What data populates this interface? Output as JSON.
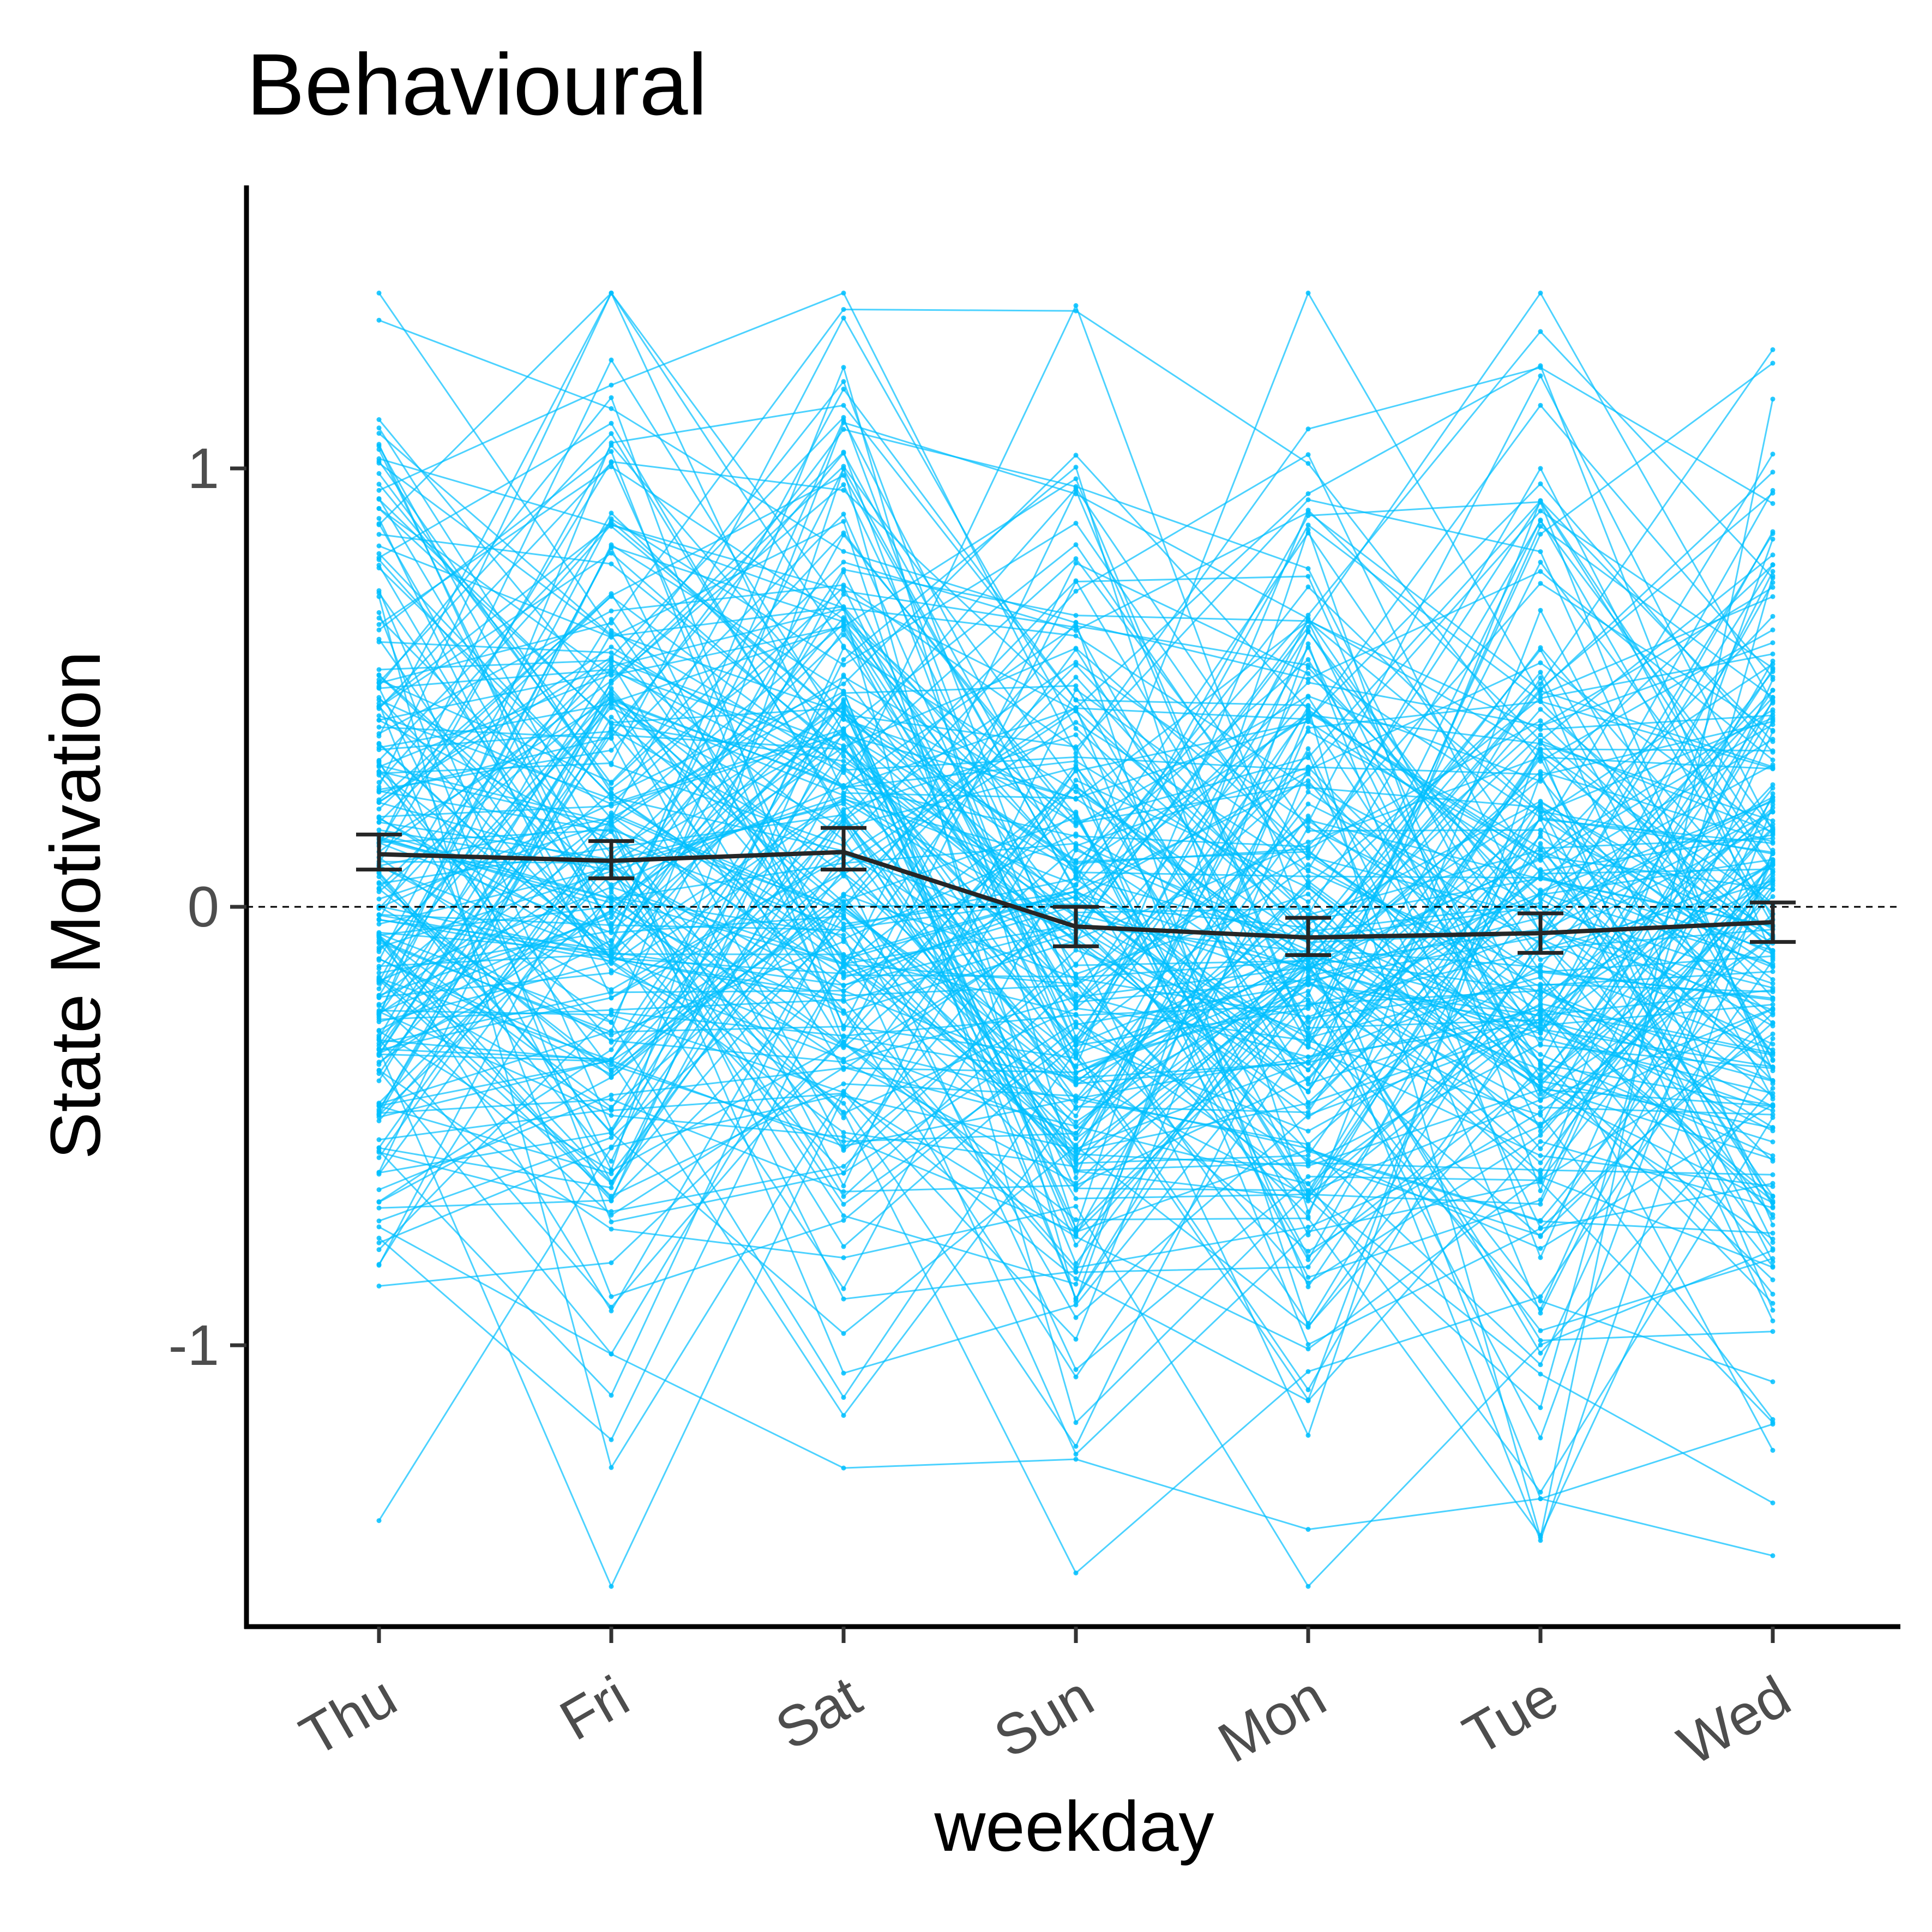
{
  "chart_data": {
    "type": "line",
    "title": "Behavioural",
    "xlabel": "weekday",
    "ylabel": "State Motivation",
    "categories": [
      "Thu",
      "Fri",
      "Sat",
      "Sun",
      "Mon",
      "Tue",
      "Wed"
    ],
    "yticks": [
      {
        "value": 1,
        "label": "1"
      },
      {
        "value": 0,
        "label": "0"
      },
      {
        "value": -1,
        "label": "-1"
      }
    ],
    "ylim": [
      -1.65,
      1.65
    ],
    "reference_line": {
      "y": 0,
      "style": "dashed"
    },
    "grid": false,
    "legend": "none",
    "colors": {
      "individual": "#00BFFF",
      "mean": "#262626",
      "axis": "#000000",
      "tick_label": "#4D4D4D"
    },
    "series": [
      {
        "values": [
          0.12,
          0.105,
          0.125,
          -0.045,
          -0.07,
          -0.06,
          -0.035
        ],
        "error_low": [
          0.085,
          0.065,
          0.085,
          -0.09,
          -0.11,
          -0.105,
          -0.08
        ],
        "error_high": [
          0.165,
          0.15,
          0.18,
          0.0,
          -0.025,
          -0.015,
          0.01
        ]
      }
    ],
    "individual_lines": {
      "count": 220,
      "range": [
        -1.55,
        1.4
      ],
      "sample_values": [
        [
          1.08,
          0.62,
          -0.15,
          0.95,
          -0.3,
          0.85,
          1.24
        ],
        [
          -1.4,
          -0.55,
          0.2,
          -0.4,
          0.0,
          -1.35,
          -1.48
        ],
        [
          0.95,
          1.19,
          1.4,
          0.35,
          1.09,
          1.23,
          0.92
        ],
        [
          -0.73,
          -1.02,
          -1.28,
          -1.26,
          -1.42,
          -1.35,
          -1.18
        ],
        [
          0.5,
          -0.6,
          1.0,
          -0.9,
          0.6,
          -0.8,
          0.4
        ]
      ]
    }
  }
}
